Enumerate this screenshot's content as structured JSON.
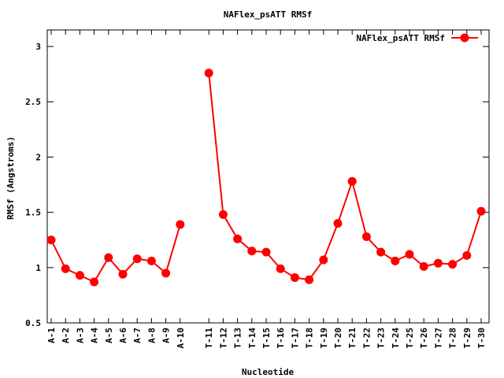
{
  "chart_data": {
    "type": "line",
    "title": "NAFlex_psATT RMSf",
    "xlabel": "Nucleotide",
    "ylabel": "RMSf (Angstroms)",
    "ylim": [
      0.5,
      3.15
    ],
    "yticks": [
      "0.5",
      "1",
      "1.5",
      "2",
      "2.5",
      "3"
    ],
    "grid": false,
    "legend_position": "top-right",
    "series": [
      {
        "name": "NAFlex_psATT RMSf",
        "color": "#ff0000",
        "segments": [
          {
            "labels": [
              "A-1",
              "A-2",
              "A-3",
              "A-4",
              "A-5",
              "A-6",
              "A-7",
              "A-8",
              "A-9",
              "A-10"
            ],
            "values": [
              1.25,
              0.99,
              0.93,
              0.87,
              1.09,
              0.94,
              1.08,
              1.06,
              0.95,
              1.39
            ]
          },
          {
            "labels": [
              "T-11",
              "T-12",
              "T-13",
              "T-14",
              "T-15",
              "T-16",
              "T-17",
              "T-18",
              "T-19",
              "T-20",
              "T-21",
              "T-22",
              "T-23",
              "T-24",
              "T-25",
              "T-26",
              "T-27",
              "T-28",
              "T-29",
              "T-30"
            ],
            "values": [
              2.76,
              1.48,
              1.26,
              1.15,
              1.14,
              0.99,
              0.91,
              0.89,
              1.07,
              1.4,
              1.78,
              1.28,
              1.14,
              1.06,
              1.12,
              1.01,
              1.04,
              1.03,
              1.11,
              1.51
            ]
          }
        ]
      }
    ]
  }
}
